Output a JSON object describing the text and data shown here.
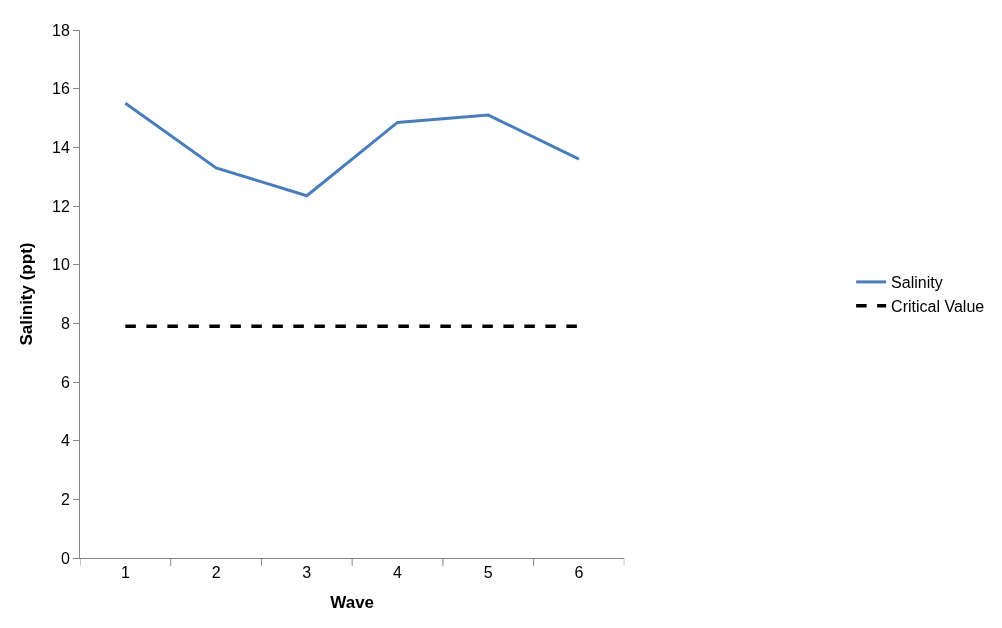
{
  "chart_data": {
    "type": "line",
    "xlabel": "Wave",
    "ylabel": "Salinity (ppt)",
    "categories": [
      "1",
      "2",
      "3",
      "4",
      "5",
      "6"
    ],
    "series": [
      {
        "name": "Salinity",
        "color": "#4a7ebb",
        "values": [
          15.5,
          13.3,
          12.35,
          14.85,
          15.1,
          13.6
        ],
        "line_style": "solid"
      },
      {
        "name": "Critical Value",
        "color": "#000000",
        "values": [
          7.9,
          7.9,
          7.9,
          7.9,
          7.9,
          7.9
        ],
        "line_style": "dashed"
      }
    ],
    "ylim": [
      0,
      18
    ],
    "yticks": [
      0,
      2,
      4,
      6,
      8,
      10,
      12,
      14,
      16,
      18
    ],
    "legend": "right",
    "marker": "none"
  }
}
